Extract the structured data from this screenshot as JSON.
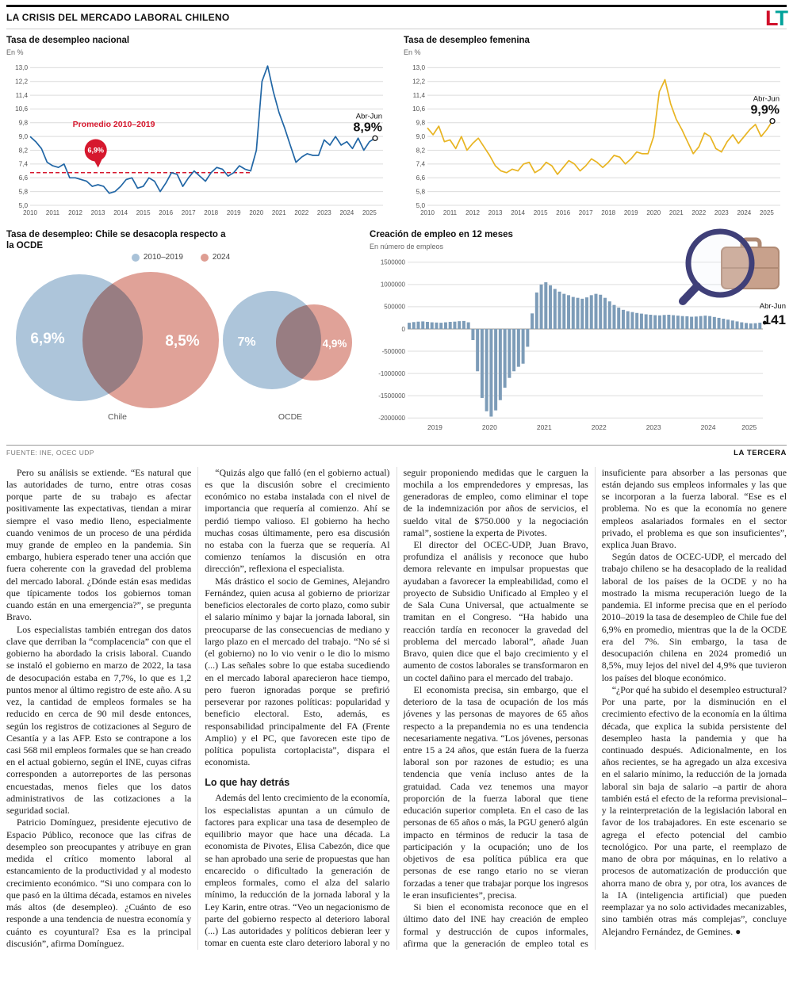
{
  "masthead": {
    "section_title": "LA CRISIS DEL MERCADO LABORAL CHILENO",
    "logo_l": "L",
    "logo_t": "T"
  },
  "source_row": {
    "source": "FUENTE: INE, OCEC UDP",
    "brand": "LA TERCERA"
  },
  "colors": {
    "national_line": "#2166a5",
    "female_line": "#e8b422",
    "average_red": "#d6182e",
    "bar_blue": "#7d9cb8",
    "venn_blue": "#a9c2d8",
    "venn_salmon": "#de9d92",
    "logo_red": "#d0112b",
    "logo_teal": "#00a29a"
  },
  "chart_data": [
    {
      "type": "line",
      "title": "Tasa de desempleo nacional",
      "subtitle": "En %",
      "color": "#2166a5",
      "x_start": 2010,
      "x_step": 0.25,
      "x_end": 2025.6,
      "xticks": [
        2010,
        2011,
        2012,
        2013,
        2014,
        2015,
        2016,
        2017,
        2018,
        2019,
        2020,
        2021,
        2022,
        2023,
        2024,
        2025
      ],
      "ytick_vals": [
        13.0,
        12.2,
        11.4,
        10.6,
        9.8,
        9.0,
        8.2,
        7.4,
        6.6,
        5.8,
        5.0
      ],
      "ytick_labels": [
        "13,0",
        "12,2",
        "11,4",
        "10,6",
        "9,8",
        "9,0",
        "8,2",
        "7,4",
        "6,6",
        "5,8",
        "5,0"
      ],
      "ylim": [
        5.0,
        13.2
      ],
      "grid": true,
      "values": [
        9.0,
        8.7,
        8.3,
        7.5,
        7.3,
        7.2,
        7.4,
        6.6,
        6.6,
        6.5,
        6.4,
        6.1,
        6.2,
        6.1,
        5.7,
        5.8,
        6.1,
        6.5,
        6.6,
        6.0,
        6.1,
        6.6,
        6.4,
        5.8,
        6.3,
        6.9,
        6.8,
        6.1,
        6.6,
        7.0,
        6.7,
        6.4,
        6.9,
        7.2,
        7.1,
        6.7,
        6.9,
        7.3,
        7.1,
        7.0,
        8.2,
        12.2,
        13.1,
        11.6,
        10.4,
        9.5,
        8.5,
        7.5,
        7.8,
        8.0,
        7.9,
        7.9,
        8.8,
        8.5,
        9.0,
        8.5,
        8.7,
        8.3,
        8.9,
        8.2,
        8.7,
        8.9
      ],
      "avg_line": {
        "value": 6.9,
        "label": "Promedio 2010–2019",
        "badge": "6,9%",
        "color": "#d6182e"
      },
      "end_label": {
        "period": "Abr-Jun",
        "value": "8,9%"
      }
    },
    {
      "type": "line",
      "title": "Tasa de desempleo femenina",
      "subtitle": "En %",
      "color": "#e8b422",
      "x_start": 2010,
      "x_step": 0.25,
      "x_end": 2025.6,
      "xticks": [
        2010,
        2011,
        2012,
        2013,
        2014,
        2015,
        2016,
        2017,
        2018,
        2019,
        2020,
        2021,
        2022,
        2023,
        2024,
        2025
      ],
      "ytick_vals": [
        13.0,
        12.2,
        11.4,
        10.6,
        9.8,
        9.0,
        8.2,
        7.4,
        6.6,
        5.8,
        5.0
      ],
      "ytick_labels": [
        "13,0",
        "12,2",
        "11,4",
        "10,6",
        "9,8",
        "9,0",
        "8,2",
        "7,4",
        "6,6",
        "5,8",
        "5,0"
      ],
      "ylim": [
        5.0,
        13.2
      ],
      "grid": true,
      "values": [
        9.5,
        9.1,
        9.6,
        8.7,
        8.8,
        8.3,
        9.0,
        8.2,
        8.6,
        8.9,
        8.4,
        7.9,
        7.3,
        7.0,
        6.9,
        7.1,
        7.0,
        7.4,
        7.5,
        6.9,
        7.1,
        7.5,
        7.3,
        6.8,
        7.2,
        7.6,
        7.4,
        7.0,
        7.3,
        7.7,
        7.5,
        7.2,
        7.5,
        7.9,
        7.8,
        7.4,
        7.7,
        8.1,
        8.0,
        8.0,
        9.0,
        11.6,
        12.3,
        10.9,
        10.0,
        9.4,
        8.7,
        8.0,
        8.4,
        9.2,
        9.0,
        8.3,
        8.1,
        8.7,
        9.1,
        8.6,
        9.0,
        9.4,
        9.7,
        9.0,
        9.4,
        9.9
      ],
      "end_label": {
        "period": "Abr-Jun",
        "value": "9,9%"
      }
    },
    {
      "type": "venn",
      "title": "Tasa de desempleo: Chile se desacopla respecto a la OCDE",
      "legend": [
        {
          "label": "2010–2019",
          "color": "#a9c2d8"
        },
        {
          "label": "2024",
          "color": "#de9d92"
        }
      ],
      "groups": [
        {
          "name": "Chile",
          "values": [
            "6,9%",
            "8,5%"
          ],
          "nums": [
            6.9,
            8.5
          ]
        },
        {
          "name": "OCDE",
          "values": [
            "7%",
            "4,9%"
          ],
          "nums": [
            7.0,
            4.9
          ]
        }
      ]
    },
    {
      "type": "bar",
      "title": "Creación de empleo en 12 meses",
      "subtitle": "En número de empleos",
      "color": "#7d9cb8",
      "x_start": 2019,
      "x_step_months": 1,
      "xticks": [
        "2019",
        "2020",
        "2021",
        "2022",
        "2023",
        "2024",
        "2025"
      ],
      "ytick_vals": [
        1500000,
        1000000,
        500000,
        0,
        -500000,
        -1000000,
        -1500000,
        -2000000
      ],
      "ytick_labels": [
        "1500000",
        "1000000",
        "500000",
        "0",
        "-500000",
        "-1000000",
        "-1500000",
        "-2000000"
      ],
      "ylim": [
        -2050000,
        1550000
      ],
      "grid": true,
      "values": [
        140000,
        155000,
        165000,
        170000,
        160000,
        150000,
        145000,
        140000,
        150000,
        160000,
        165000,
        175000,
        180000,
        150000,
        -250000,
        -950000,
        -1550000,
        -1850000,
        -1970000,
        -1830000,
        -1600000,
        -1320000,
        -1100000,
        -950000,
        -850000,
        -780000,
        -400000,
        350000,
        820000,
        1000000,
        1050000,
        980000,
        900000,
        840000,
        790000,
        760000,
        720000,
        700000,
        680000,
        710000,
        760000,
        790000,
        770000,
        700000,
        620000,
        540000,
        480000,
        430000,
        400000,
        380000,
        360000,
        345000,
        330000,
        320000,
        310000,
        305000,
        315000,
        320000,
        310000,
        300000,
        290000,
        285000,
        275000,
        280000,
        290000,
        300000,
        290000,
        270000,
        250000,
        230000,
        210000,
        190000,
        170000,
        150000,
        135000,
        125000,
        130000,
        141000
      ],
      "end_label": {
        "period": "Abr-Jun",
        "value": "141"
      }
    }
  ],
  "article": {
    "paragraphs": [
      {
        "type": "p",
        "text": "Pero su análisis se extiende. “Es natural que las autoridades de turno, entre otras cosas porque parte de su trabajo es afectar positivamente las expectativas, tiendan a mirar siempre el vaso medio lleno, especialmente cuando venimos de un proceso de una pérdida muy grande de empleo en la pandemia. Sin embargo, hubiera esperado tener una acción que fuera coherente con la gravedad del problema del mercado laboral. ¿Dónde están esas medidas que típicamente todos los gobiernos toman cuando están en una emergencia?”, se pregunta Bravo."
      },
      {
        "type": "p",
        "text": "Los especialistas también entregan dos datos clave que derriban la “complacencia” con que el gobierno ha abordado la crisis laboral. Cuando se instaló el gobierno en marzo de 2022, la tasa de desocupación estaba en 7,7%, lo que es 1,2 puntos menor al último registro de este año. A su vez, la cantidad de empleos formales se ha reducido en cerca de 90 mil desde entonces, según los registros de cotizaciones al Seguro de Cesantía y a las AFP. Esto se contrapone a los casi 568 mil empleos formales que se han creado en el actual gobierno, según el INE, cuyas cifras corresponden a autorreportes de las personas encuestadas, menos fieles que los datos administrativos de las cotizaciones a la seguridad social."
      },
      {
        "type": "p",
        "text": "Patricio Domínguez, presidente ejecutivo de Espacio Público, reconoce que las cifras de desempleo son preocupantes y atribuye en gran medida el crítico momento laboral al estancamiento de la productividad y al modesto crecimiento económico. “Si uno compara con lo que pasó en la última década, estamos en niveles más altos (de desempleo). ¿Cuánto de eso responde a una tendencia de nuestra economía y cuánto es coyuntural? Esa es la principal discusión”, afirma Domínguez."
      },
      {
        "type": "p",
        "text": "“Quizás algo que falló (en el gobierno actual) es que la discusión sobre el crecimiento económico no estaba instalada con el nivel de importancia que requería al comienzo. Ahí se perdió tiempo valioso. El gobierno ha hecho muchas cosas últimamente, pero esa discusión no estaba con la fuerza que se requería. Al comienzo teníamos la discusión en otra dirección”, reflexiona el especialista."
      },
      {
        "type": "p",
        "text": "Más drástico el socio de Gemines, Alejandro Fernández, quien acusa al gobierno de priorizar beneficios electorales de corto plazo, como subir el salario mínimo y bajar la jornada laboral, sin preocuparse de las consecuencias de mediano y largo plazo en el mercado del trabajo. “No sé si (el gobierno) no lo vio venir o le dio lo mismo (...) Las señales sobre lo que estaba sucediendo en el mercado laboral aparecieron hace tiempo, pero fueron ignoradas porque se prefirió perseverar por razones políticas: popularidad y beneficio electoral. Esto, además, es responsabilidad principalmente del FA (Frente Amplio) y el PC, que favorecen este tipo de política populista cortoplacista”, dispara el economista."
      },
      {
        "type": "h",
        "text": "Lo que hay detrás"
      },
      {
        "type": "p",
        "text": "Además del lento crecimiento de la economía, los especialistas apuntan a un cúmulo de factores para explicar una tasa de desempleo de equilibrio mayor que hace una década. La economista de Pivotes, Elisa Cabezón, dice que se han aprobado una serie de propuestas que han encarecido o dificultado la generación de empleos formales, como el alza del salario mínimo, la reducción de la jornada laboral y la Ley Karin, entre otras. “Veo un negacionismo de parte del gobierno respecto al deterioro laboral (...) Las autoridades y políticos debieran leer y tomar en cuenta este claro deterioro laboral y no seguir proponiendo medidas que le carguen la mochila a los emprendedores y empresas, las generadoras de empleo, como eliminar el tope de la indemnización por años de servicios, el sueldo vital de $750.000 y la negociación ramal”, sostiene la experta de Pivotes."
      },
      {
        "type": "p",
        "text": "El director del OCEC-UDP, Juan Bravo, profundiza el análisis y reconoce que hubo demora relevante en impulsar propuestas que ayudaban a favorecer la empleabilidad, como el proyecto de Subsidio Unificado al Empleo y el de Sala Cuna Universal, que actualmente se tramitan en el Congreso. “Ha habido una reacción tardía en reconocer la gravedad del problema del mercado laboral”, añade Juan Bravo, quien dice que el bajo crecimiento y el aumento de costos laborales se transformaron en un coctel dañino para el mercado del trabajo."
      },
      {
        "type": "p",
        "text": "El economista precisa, sin embargo, que el deterioro de la tasa de ocupación de los más jóvenes y las personas de mayores de 65 años respecto a la prepandemia no es una tendencia necesariamente negativa. “Los jóvenes, personas entre 15 a 24 años, que están fuera de la fuerza laboral son por razones de estudio; es una tendencia que venía incluso antes de la gratuidad. Cada vez tenemos una mayor proporción de la fuerza laboral que tiene educación superior completa. En el caso de las personas de 65 años o más, la PGU generó algún impacto en términos de reducir la tasa de participación y la ocupación; uno de los objetivos de esa política pública era que personas de ese rango etario no se vieran forzadas a tener que trabajar porque los ingresos le eran insuficientes”, precisa."
      },
      {
        "type": "p",
        "text": "Si bien el economista reconoce que en el último dato del INE hay creación de empleo formal y destrucción de cupos informales, afirma que la generación de empleo total es insuficiente para absorber a las personas que están dejando sus empleos informales y las que se incorporan a la fuerza laboral. “Ese es el problema. No es que la economía no genere empleos asalariados formales en el sector privado, el problema es que son insuficientes”, explica Juan Bravo."
      },
      {
        "type": "p",
        "text": "Según datos de OCEC-UDP, el mercado del trabajo chileno se ha desacoplado de la realidad laboral de los países de la OCDE y no ha mostrado la misma recuperación luego de la pandemia. El informe precisa que en el período 2010–2019 la tasa de desempleo de Chile fue del 6,9% en promedio, mientras que la de la OCDE era del 7%. Sin embargo, la tasa de desocupación chilena en 2024 promedió un 8,5%, muy lejos del nivel del 4,9% que tuvieron los países del bloque económico."
      },
      {
        "type": "p",
        "text": "“¿Por qué ha subido el desempleo estructural? Por una parte, por la disminución en el crecimiento efectivo de la economía en la última década, que explica la subida persistente del desempleo hasta la pandemia y que ha continuado después. Adicionalmente, en los años recientes, se ha agregado un alza excesiva en el salario mínimo, la reducción de la jornada laboral sin baja de salario –a partir de ahora también está el efecto de la reforma previsional– y la reinterpretación de la legislación laboral en favor de los trabajadores. En este escenario se agrega el efecto potencial del cambio tecnológico. Por una parte, el reemplazo de mano de obra por máquinas, en lo relativo a procesos de automatización de producción que ahorra mano de obra y, por otra, los avances de la IA (inteligencia artificial) que pueden reemplazar ya no solo actividades mecanizables, sino también otras más complejas”, concluye Alejandro Fernández, de Gemines. ●"
      }
    ]
  }
}
